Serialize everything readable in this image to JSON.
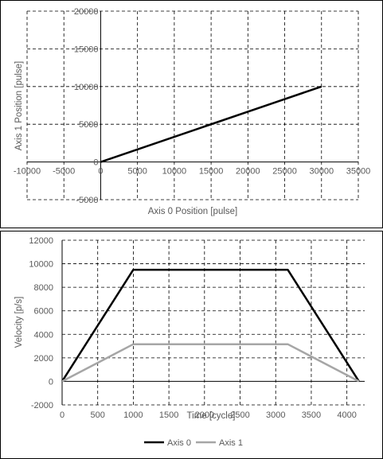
{
  "chart_data": [
    {
      "type": "scatter",
      "xlabel": "Axis 0 Position [pulse]",
      "ylabel": "Axis 1 Position [pulse]",
      "xlim": [
        -10000,
        35000
      ],
      "ylim": [
        -5000,
        20000
      ],
      "xticks": [
        -10000,
        -5000,
        0,
        5000,
        10000,
        15000,
        20000,
        25000,
        30000,
        35000
      ],
      "yticks": [
        -5000,
        0,
        5000,
        10000,
        15000,
        20000
      ],
      "xtick_labels": [
        "-10000",
        "-5000",
        "0",
        "5000",
        "10000",
        "15000",
        "20000",
        "25000",
        "30000",
        "35000"
      ],
      "ytick_labels": [
        "-5000",
        "0",
        "5000",
        "10000",
        "15000",
        "20000"
      ],
      "grid": true,
      "series": [
        {
          "color": "#000000",
          "x": [
            0,
            30000
          ],
          "y": [
            0,
            10000
          ]
        }
      ]
    },
    {
      "type": "line",
      "xlabel": "Time [cycle]",
      "ylabel": "Velocity [p/s]",
      "xlim": [
        0,
        4250
      ],
      "ylim": [
        -2000,
        12000
      ],
      "xticks": [
        0,
        500,
        1000,
        1500,
        2000,
        2500,
        3000,
        3500,
        4000
      ],
      "yticks": [
        -2000,
        0,
        2000,
        4000,
        6000,
        8000,
        10000,
        12000
      ],
      "xtick_labels": [
        "0",
        "500",
        "1000",
        "1500",
        "2000",
        "2500",
        "3000",
        "3500",
        "4000"
      ],
      "ytick_labels": [
        "-2000",
        "0",
        "2000",
        "4000",
        "6000",
        "8000",
        "10000",
        "12000"
      ],
      "grid": true,
      "legend": "bottom",
      "series": [
        {
          "name": "Axis 0",
          "color": "#000000",
          "x": [
            0,
            1000,
            3170,
            4170
          ],
          "y": [
            0,
            9490,
            9490,
            0
          ]
        },
        {
          "name": "Axis 1",
          "color": "#a6a6a6",
          "x": [
            0,
            1000,
            3170,
            4170
          ],
          "y": [
            0,
            3160,
            3160,
            0
          ]
        }
      ]
    }
  ]
}
